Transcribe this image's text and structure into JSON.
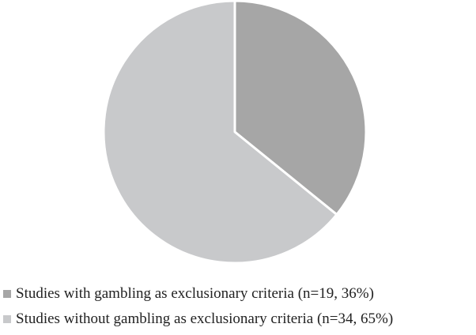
{
  "chart_data": {
    "type": "pie",
    "title": "",
    "start_angle": "12 o'clock, clockwise",
    "slices": [
      {
        "label": "Studies with gambling as exclusionary criteria (n=19, 36%)",
        "n": 19,
        "percent": 36,
        "color": "#a6a6a6"
      },
      {
        "label": "Studies without gambling as exclusionary criteria (n=34, 65%)",
        "n": 34,
        "percent": 65,
        "color": "#c8c9cb"
      }
    ],
    "legend_position": "bottom",
    "slice_border_color": "#ffffff"
  }
}
